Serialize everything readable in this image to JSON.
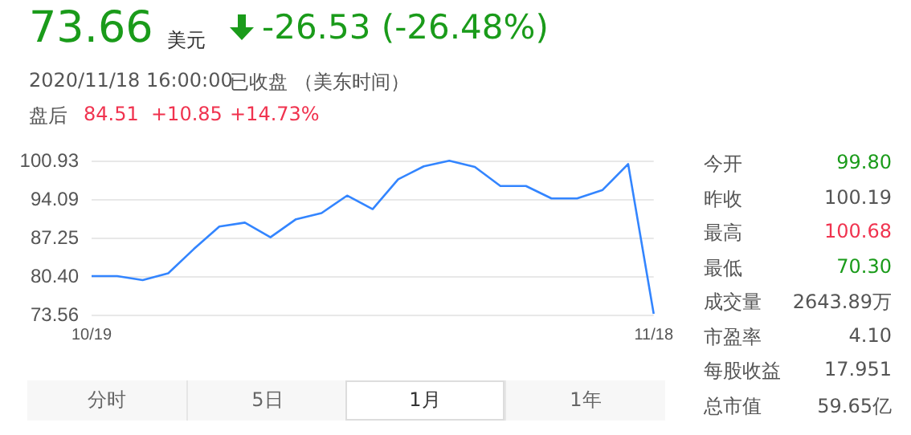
{
  "chart_data": {
    "type": "line",
    "title": "73.66",
    "annotations": [
      "美元",
      "-26.53 (-26.48%)",
      "2020/11/18 16:00:00",
      "已收盘 （美东时间）",
      "盘后",
      "84.51",
      "+10.85",
      "+14.73%",
      "今开",
      "99.80",
      "昨收",
      "100.19",
      "最高",
      "100.68",
      "最低",
      "70.30",
      "成交量",
      "2643.89万",
      "市盈率",
      "4.10",
      "每股收益",
      "17.951",
      "总市值",
      "59.65亿",
      "分时",
      "5日",
      "1月",
      "1年"
    ],
    "categories": [
      "10/19",
      null,
      null,
      null,
      null,
      null,
      null,
      null,
      null,
      null,
      null,
      null,
      null,
      null,
      null,
      null,
      null,
      null,
      null,
      null,
      null,
      null,
      "11/18"
    ],
    "series": [
      {
        "color": "#3385ff",
        "values": [
          80.4,
          80.4,
          79.7,
          80.9,
          85.2,
          89.2,
          89.9,
          87.3,
          90.5,
          91.6,
          94.7,
          92.3,
          97.6,
          99.9,
          100.9,
          99.8,
          96.4,
          96.4,
          94.2,
          94.2,
          95.7,
          100.3,
          73.7
        ]
      }
    ],
    "ylim": [
      73.56,
      100.93
    ],
    "yticks": [
      73.56,
      {
        "value": 80.4,
        "label": "80.40"
      },
      87.25,
      94.09,
      100.93
    ],
    "grid": "y",
    "marker": "none",
    "line_style": "solid"
  }
}
